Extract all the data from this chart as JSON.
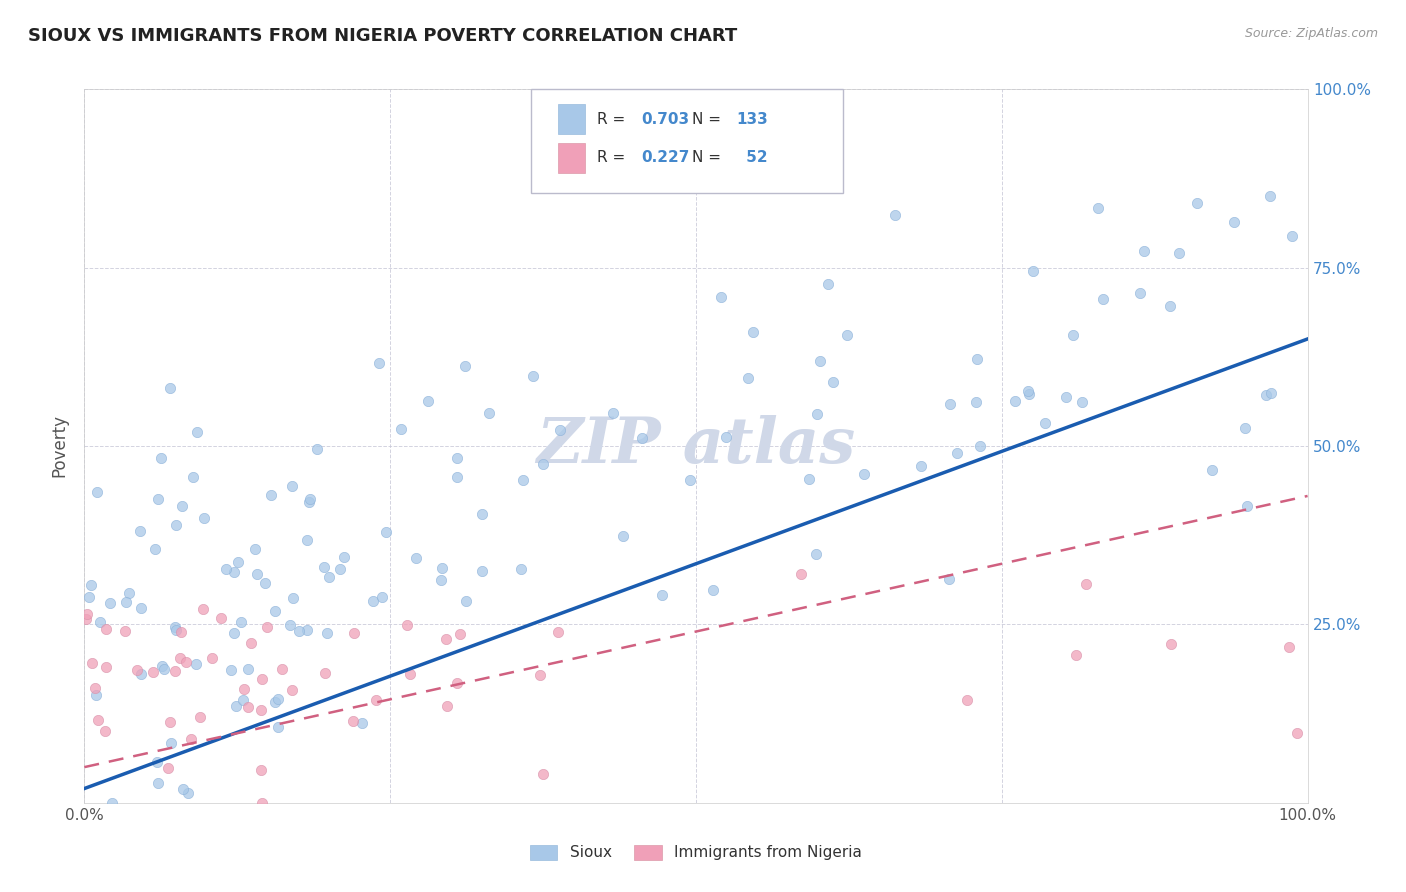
{
  "title": "SIOUX VS IMMIGRANTS FROM NIGERIA POVERTY CORRELATION CHART",
  "source": "Source: ZipAtlas.com",
  "ylabel": "Poverty",
  "sioux_color": "#a8c8e8",
  "nigeria_color": "#f0a0b8",
  "sioux_line_color": "#1a5cb0",
  "nigeria_line_color": "#d06080",
  "sioux_R": 0.703,
  "sioux_N": 133,
  "nigeria_R": 0.227,
  "nigeria_N": 52,
  "background_color": "#ffffff",
  "grid_color": "#c8c8d8",
  "title_color": "#222222",
  "right_axis_color": "#4488cc",
  "legend_box_color": "#ddddee",
  "watermark_color": "#d0d8e8"
}
